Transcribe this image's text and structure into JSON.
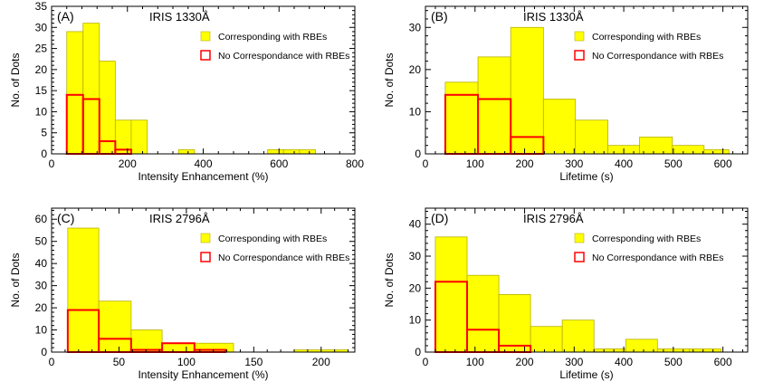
{
  "colors": {
    "fill": "#ffff00",
    "fill_edge": "#b8b000",
    "outline": "#ff0000",
    "axis": "#000000"
  },
  "chart_data": [
    {
      "type": "bar",
      "panel_label": "(A)",
      "title": "IRIS 1330Å",
      "xlabel": "Intensity Enhancement (%)",
      "ylabel": "No. of Dots",
      "xlim": [
        0,
        800
      ],
      "ylim": [
        0,
        35
      ],
      "xticks": [
        0,
        200,
        400,
        600,
        800
      ],
      "yticks": [
        0,
        5,
        10,
        15,
        20,
        25,
        30,
        35
      ],
      "legend_position": "top-right",
      "series": [
        {
          "name": "Corresponding with RBEs",
          "style": "filled",
          "bins": [
            {
              "x0": 40,
              "x1": 83,
              "value": 29
            },
            {
              "x0": 83,
              "x1": 126,
              "value": 31
            },
            {
              "x0": 126,
              "x1": 168,
              "value": 22
            },
            {
              "x0": 168,
              "x1": 210,
              "value": 8
            },
            {
              "x0": 210,
              "x1": 252,
              "value": 8
            },
            {
              "x0": 335,
              "x1": 377,
              "value": 1
            },
            {
              "x0": 570,
              "x1": 612,
              "value": 1
            },
            {
              "x0": 612,
              "x1": 654,
              "value": 1
            },
            {
              "x0": 654,
              "x1": 696,
              "value": 1
            }
          ]
        },
        {
          "name": "No Correspondance with RBEs",
          "style": "outline",
          "bins": [
            {
              "x0": 40,
              "x1": 83,
              "value": 14
            },
            {
              "x0": 83,
              "x1": 126,
              "value": 13
            },
            {
              "x0": 126,
              "x1": 168,
              "value": 3
            },
            {
              "x0": 168,
              "x1": 210,
              "value": 1
            }
          ]
        }
      ]
    },
    {
      "type": "bar",
      "panel_label": "(B)",
      "title": "IRIS 1330Å",
      "xlabel": "Lifetime (s)",
      "ylabel": "No. of Dots",
      "xlim": [
        0,
        650
      ],
      "ylim": [
        0,
        35
      ],
      "xticks": [
        0,
        100,
        200,
        300,
        400,
        500,
        600
      ],
      "yticks": [
        0,
        10,
        20,
        30
      ],
      "legend_position": "top-right",
      "series": [
        {
          "name": "Corresponding with RBEs",
          "style": "filled",
          "bins": [
            {
              "x0": 40,
              "x1": 106,
              "value": 17
            },
            {
              "x0": 106,
              "x1": 172,
              "value": 23
            },
            {
              "x0": 172,
              "x1": 238,
              "value": 30
            },
            {
              "x0": 238,
              "x1": 302,
              "value": 13
            },
            {
              "x0": 302,
              "x1": 368,
              "value": 8
            },
            {
              "x0": 368,
              "x1": 432,
              "value": 2
            },
            {
              "x0": 432,
              "x1": 498,
              "value": 4
            },
            {
              "x0": 498,
              "x1": 562,
              "value": 2
            },
            {
              "x0": 562,
              "x1": 612,
              "value": 1
            }
          ]
        },
        {
          "name": "No Correspondance with RBEs",
          "style": "outline",
          "bins": [
            {
              "x0": 40,
              "x1": 106,
              "value": 14
            },
            {
              "x0": 106,
              "x1": 172,
              "value": 13
            },
            {
              "x0": 172,
              "x1": 238,
              "value": 4
            }
          ]
        }
      ]
    },
    {
      "type": "bar",
      "panel_label": "(C)",
      "title": "IRIS 2796Å",
      "xlabel": "Intensity Enhancement (%)",
      "ylabel": "No. of Dots",
      "xlim": [
        0,
        225
      ],
      "ylim": [
        0,
        65
      ],
      "xticks": [
        0,
        50,
        100,
        150,
        200
      ],
      "yticks": [
        0,
        10,
        20,
        30,
        40,
        50,
        60
      ],
      "legend_position": "top-right",
      "series": [
        {
          "name": "Corresponding with RBEs",
          "style": "filled",
          "bins": [
            {
              "x0": 12,
              "x1": 35,
              "value": 56
            },
            {
              "x0": 35,
              "x1": 59,
              "value": 23
            },
            {
              "x0": 59,
              "x1": 82,
              "value": 10
            },
            {
              "x0": 82,
              "x1": 106,
              "value": 4
            },
            {
              "x0": 106,
              "x1": 135,
              "value": 4
            },
            {
              "x0": 180,
              "x1": 220,
              "value": 1
            }
          ]
        },
        {
          "name": "No Correspondance with RBEs",
          "style": "outline",
          "bins": [
            {
              "x0": 12,
              "x1": 35,
              "value": 19
            },
            {
              "x0": 35,
              "x1": 59,
              "value": 6
            },
            {
              "x0": 59,
              "x1": 82,
              "value": 1
            },
            {
              "x0": 82,
              "x1": 106,
              "value": 4
            },
            {
              "x0": 106,
              "x1": 129,
              "value": 1
            }
          ]
        }
      ]
    },
    {
      "type": "bar",
      "panel_label": "(D)",
      "title": "IRIS 2796Å",
      "xlabel": "Lifetime (s)",
      "ylabel": "No. of Dots",
      "xlim": [
        0,
        650
      ],
      "ylim": [
        0,
        45
      ],
      "xticks": [
        0,
        100,
        200,
        300,
        400,
        500,
        600
      ],
      "yticks": [
        0,
        10,
        20,
        30,
        40
      ],
      "legend_position": "top-right",
      "series": [
        {
          "name": "Corresponding with RBEs",
          "style": "filled",
          "bins": [
            {
              "x0": 20,
              "x1": 84,
              "value": 36
            },
            {
              "x0": 84,
              "x1": 148,
              "value": 24
            },
            {
              "x0": 148,
              "x1": 212,
              "value": 18
            },
            {
              "x0": 212,
              "x1": 276,
              "value": 8
            },
            {
              "x0": 276,
              "x1": 340,
              "value": 10
            },
            {
              "x0": 340,
              "x1": 404,
              "value": 1
            },
            {
              "x0": 404,
              "x1": 468,
              "value": 4
            },
            {
              "x0": 468,
              "x1": 532,
              "value": 1
            },
            {
              "x0": 532,
              "x1": 596,
              "value": 1
            }
          ]
        },
        {
          "name": "No Correspondance with RBEs",
          "style": "outline",
          "bins": [
            {
              "x0": 20,
              "x1": 84,
              "value": 22
            },
            {
              "x0": 84,
              "x1": 148,
              "value": 7
            },
            {
              "x0": 148,
              "x1": 212,
              "value": 2
            }
          ]
        }
      ]
    }
  ]
}
